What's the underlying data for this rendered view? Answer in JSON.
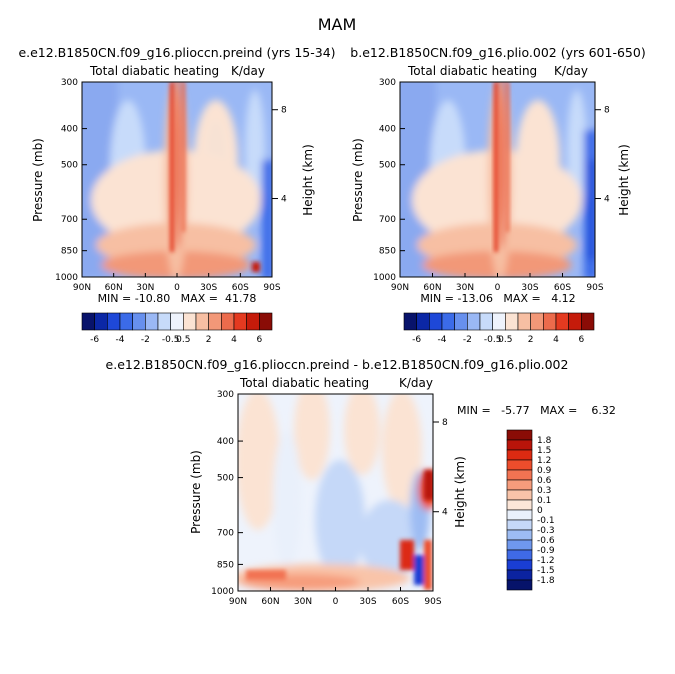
{
  "figure": {
    "title": "MAM"
  },
  "chart_data": [
    {
      "type": "heatmap",
      "title": "e.e12.B1850CN.f09_g16.plioccn.preind (yrs 15-34)",
      "subtitle_left": "Total diabatic heating",
      "subtitle_right": "K/day",
      "ylabel": "Pressure (mb)",
      "ylabel_right": "Height (km)",
      "x_ticks": [
        "90N",
        "60N",
        "30N",
        "0",
        "30S",
        "60S",
        "90S"
      ],
      "y_ticks": [
        "300",
        "400",
        "500",
        "700",
        "850",
        "1000"
      ],
      "y_ticks_right": [
        "8",
        "4"
      ],
      "stats": "MIN = -10.80   MAX =  41.78"
    },
    {
      "type": "heatmap",
      "title": "b.e12.B1850CN.f09_g16.plio.002 (yrs 601-650)",
      "subtitle_left": "Total diabatic heating",
      "subtitle_right": "K/day",
      "ylabel": "Pressure (mb)",
      "ylabel_right": "Height (km)",
      "x_ticks": [
        "90N",
        "60N",
        "30N",
        "0",
        "30S",
        "60S",
        "90S"
      ],
      "y_ticks": [
        "300",
        "400",
        "500",
        "700",
        "850",
        "1000"
      ],
      "y_ticks_right": [
        "8",
        "4"
      ],
      "stats": "MIN = -13.06   MAX =   4.12"
    },
    {
      "type": "heatmap",
      "title": "e.e12.B1850CN.f09_g16.plioccn.preind - b.e12.B1850CN.f09_g16.plio.002",
      "subtitle_left": "Total diabatic heating",
      "subtitle_right": "K/day",
      "ylabel": "Pressure (mb)",
      "ylabel_right": "Height (km)",
      "x_ticks": [
        "90N",
        "60N",
        "30N",
        "0",
        "30S",
        "60S",
        "90S"
      ],
      "y_ticks": [
        "300",
        "400",
        "500",
        "700",
        "850",
        "1000"
      ],
      "y_ticks_right": [
        "8",
        "4"
      ],
      "stats": "MIN =   -5.77   MAX =    6.32"
    }
  ],
  "colorbar_top": {
    "labels": [
      "-6",
      "-4",
      "-2",
      "-0.5",
      "0.5",
      "2",
      "4",
      "6"
    ],
    "colors": [
      "#08136b",
      "#0b27a6",
      "#1e48d8",
      "#3b6be8",
      "#6790ee",
      "#9ab8f5",
      "#c7dbfa",
      "#eef3fc",
      "#fbe3d3",
      "#f7bfa3",
      "#f29878",
      "#ec6b4c",
      "#e43a20",
      "#c51b0a",
      "#8a0c06"
    ]
  },
  "colorbar_diff": {
    "labels": [
      "1.8",
      "1.5",
      "1.2",
      "0.9",
      "0.6",
      "0.3",
      "0.1",
      "0",
      "-0.1",
      "-0.3",
      "-0.6",
      "-0.9",
      "-1.2",
      "-1.5",
      "-1.8"
    ],
    "colors": [
      "#8a0c06",
      "#b8140a",
      "#dc2a12",
      "#ec4d2c",
      "#f27352",
      "#f69c7c",
      "#f9c4a9",
      "#fce6d8",
      "#e9f0fb",
      "#c5d8f8",
      "#9dbcf3",
      "#6f98ee",
      "#3f6ae6",
      "#1a3ed4",
      "#0b23a0",
      "#06136a"
    ]
  }
}
